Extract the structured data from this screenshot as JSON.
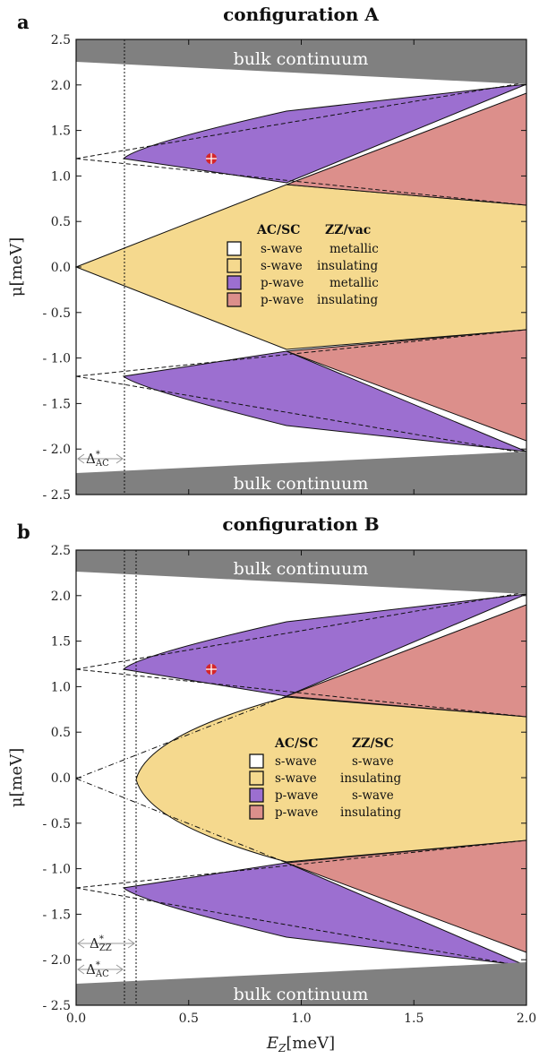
{
  "colors": {
    "s_wave_metallic": "#ffffff",
    "s_wave_insulating": "#f5d98e",
    "p_wave_metallic": "#9c6fd0",
    "p_wave_insulating": "#dc8f8b",
    "bulk": "#808080",
    "marker": "#d62728"
  },
  "chart_data": [
    {
      "type": "area",
      "panel": "a",
      "title": "configuration A",
      "xlabel": "",
      "ylabel": "μ[meV]",
      "xlim": [
        0,
        2.0
      ],
      "ylim": [
        -2.5,
        2.5
      ],
      "yticks": [
        "2.5",
        "2.0",
        "1.5",
        "1.0",
        "0.5",
        "0.0",
        "- 0.5",
        "- 1.0",
        "- 1.5",
        "- 2.0",
        "- 2.5"
      ],
      "bulk_label": "bulk continuum",
      "legend": {
        "placement": "center",
        "headers": [
          "AC/SC",
          "ZZ/vac"
        ],
        "entries": [
          {
            "col1": "s-wave",
            "col2": "metallic",
            "color_key": "s_wave_metallic"
          },
          {
            "col1": "s-wave",
            "col2": "insulating",
            "color_key": "s_wave_insulating"
          },
          {
            "col1": "p-wave",
            "col2": "metallic",
            "color_key": "p_wave_metallic"
          },
          {
            "col1": "p-wave",
            "col2": "insulating",
            "color_key": "p_wave_insulating"
          }
        ]
      },
      "marker": {
        "x": 0.6,
        "y": 1.2
      },
      "delta_lines": [
        {
          "label": "Δ*AC",
          "x": 0.21
        }
      ],
      "regions": {
        "bulk_top": [
          [
            0,
            2.28
          ],
          [
            2.0,
            2.0
          ]
        ],
        "bulk_bottom": [
          [
            0,
            -2.28
          ],
          [
            2.0,
            -2.0
          ]
        ],
        "yellow_apex": [
          0,
          0
        ],
        "yellow_right_top": [
          2.0,
          0.68
        ],
        "yellow_right_bottom": [
          2.0,
          -0.68
        ],
        "purple_lobe_tip": [
          0.21,
          1.2
        ],
        "lobe_crossing": [
          0.94,
          0.92
        ],
        "red_top_right": [
          2.0,
          1.9
        ]
      }
    },
    {
      "type": "area",
      "panel": "b",
      "title": "configuration B",
      "xlabel": "E_Z[meV]",
      "ylabel": "μ[meV]",
      "xlim": [
        0,
        2.0
      ],
      "ylim": [
        -2.5,
        2.5
      ],
      "xticks": [
        "0.0",
        "0.5",
        "1.0",
        "1.5",
        "2.0"
      ],
      "yticks": [
        "2.5",
        "2.0",
        "1.5",
        "1.0",
        "0.5",
        "0.0",
        "- 0.5",
        "- 1.0",
        "- 1.5",
        "- 2.0",
        "- 2.5"
      ],
      "bulk_label": "bulk continuum",
      "legend": {
        "placement": "center",
        "headers": [
          "AC/SC",
          "ZZ/SC"
        ],
        "entries": [
          {
            "col1": "s-wave",
            "col2": "s-wave",
            "color_key": "s_wave_metallic"
          },
          {
            "col1": "s-wave",
            "col2": "insulating",
            "color_key": "s_wave_insulating"
          },
          {
            "col1": "p-wave",
            "col2": "s-wave",
            "color_key": "p_wave_metallic"
          },
          {
            "col1": "p-wave",
            "col2": "insulating",
            "color_key": "p_wave_insulating"
          }
        ]
      },
      "marker": {
        "x": 0.6,
        "y": 1.2
      },
      "delta_lines": [
        {
          "label": "Δ*ZZ",
          "x": 0.27
        },
        {
          "label": "Δ*AC",
          "x": 0.21
        }
      ],
      "regions": {
        "yellow_apex": [
          0.27,
          0
        ],
        "yellow_right_top": [
          2.0,
          0.68
        ],
        "yellow_right_bottom": [
          2.0,
          -0.68
        ]
      }
    }
  ],
  "panels": [
    {
      "letter": "a",
      "title": "configuration A",
      "ylabel": "μ[meV]",
      "bulk_top": "bulk continuum",
      "bulk_bottom": "bulk continuum",
      "legend_h1": "AC/SC",
      "legend_h2": "ZZ/vac",
      "rows": [
        [
          "s-wave",
          "metallic"
        ],
        [
          "s-wave",
          "insulating"
        ],
        [
          "p-wave",
          "metallic"
        ],
        [
          "p-wave",
          "insulating"
        ]
      ],
      "delta": [
        {
          "main": "Δ",
          "sup": "*",
          "sub": "AC"
        }
      ]
    },
    {
      "letter": "b",
      "title": "configuration B",
      "ylabel": "μ[meV]",
      "xlabel": "E",
      "xlabel_sub": "Z",
      "xlabel_unit": "[meV]",
      "bulk_top": "bulk continuum",
      "bulk_bottom": "bulk continuum",
      "legend_h1": "AC/SC",
      "legend_h2": "ZZ/SC",
      "rows": [
        [
          "s-wave",
          "s-wave"
        ],
        [
          "s-wave",
          "insulating"
        ],
        [
          "p-wave",
          "s-wave"
        ],
        [
          "p-wave",
          "insulating"
        ]
      ],
      "delta": [
        {
          "main": "Δ",
          "sup": "*",
          "sub": "ZZ"
        },
        {
          "main": "Δ",
          "sup": "*",
          "sub": "AC"
        }
      ]
    }
  ]
}
